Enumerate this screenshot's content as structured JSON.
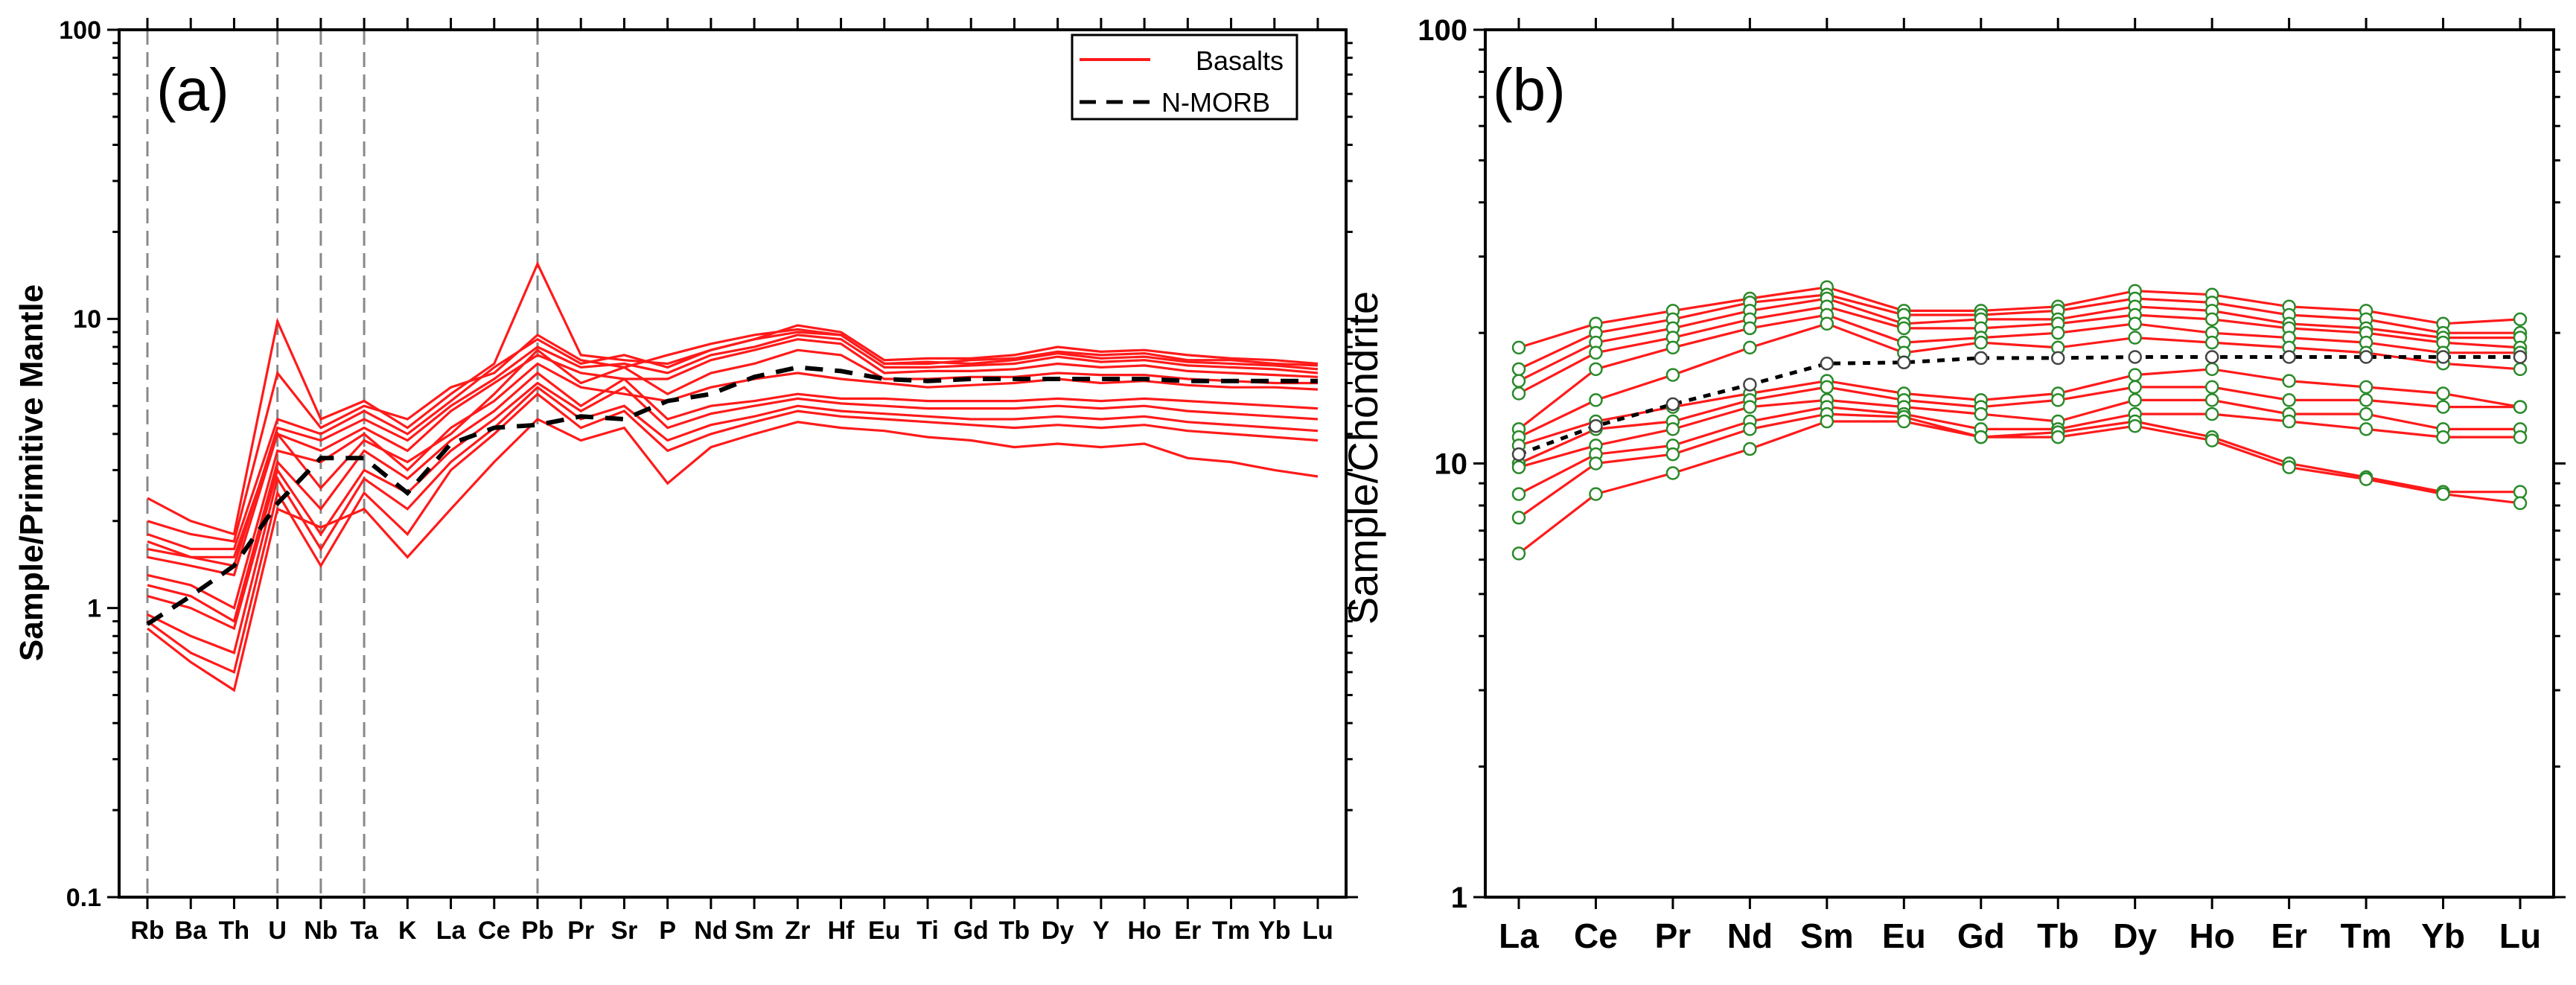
{
  "colors": {
    "series": "#ff1a1a",
    "reference": "#000000",
    "marker": "#2a8a2a",
    "reference_marker": "#444444"
  },
  "chart_data": [
    {
      "type": "line",
      "panel_label": "(a)",
      "ylabel": "Sample/Primitive Mantle",
      "xlabel": "",
      "y_scale": "log",
      "ylim": [
        0.1,
        100
      ],
      "y_tick_labels": [
        "0.1",
        "1",
        "10",
        "100"
      ],
      "y_tick_values": [
        0.1,
        1,
        10,
        100
      ],
      "categories": [
        "Rb",
        "Ba",
        "Th",
        "U",
        "Nb",
        "Ta",
        "K",
        "La",
        "Ce",
        "Pb",
        "Pr",
        "Sr",
        "P",
        "Nd",
        "Sm",
        "Zr",
        "Hf",
        "Eu",
        "Ti",
        "Gd",
        "Tb",
        "Dy",
        "Y",
        "Ho",
        "Er",
        "Tm",
        "Yb",
        "Lu"
      ],
      "vertical_dashed_at": [
        "Rb",
        "U",
        "Nb",
        "Ta",
        "Pb"
      ],
      "legend": {
        "position": "top-right",
        "entries": [
          {
            "label": "Basalts",
            "style": "solid-red"
          },
          {
            "label": "N-MORB",
            "style": "dashed-black"
          }
        ]
      },
      "series": [
        {
          "values": [
            2.4,
            2.0,
            1.8,
            9.8,
            4.5,
            5.2,
            4.2,
            5.5,
            7.0,
            15.5,
            7.5,
            7.2,
            7.0,
            7.8,
            8.5,
            9.5,
            9.0,
            7.2,
            7.3,
            7.3,
            7.5,
            8.0,
            7.7,
            7.8,
            7.5,
            7.3,
            7.2,
            7.0
          ]
        },
        {
          "values": [
            2.0,
            1.8,
            1.7,
            6.5,
            4.2,
            5.0,
            4.5,
            5.8,
            6.5,
            8.8,
            7.2,
            6.8,
            7.5,
            8.2,
            8.8,
            9.2,
            8.8,
            7.0,
            7.0,
            7.2,
            7.3,
            7.7,
            7.5,
            7.6,
            7.2,
            7.2,
            7.0,
            6.9
          ]
        },
        {
          "values": [
            1.8,
            1.6,
            1.6,
            4.5,
            4.0,
            4.8,
            4.0,
            5.2,
            6.8,
            8.5,
            7.0,
            7.5,
            6.8,
            7.8,
            8.5,
            9.0,
            8.8,
            7.0,
            7.1,
            7.0,
            7.2,
            7.6,
            7.3,
            7.4,
            7.1,
            7.0,
            6.9,
            6.7
          ]
        },
        {
          "values": [
            1.6,
            1.5,
            1.4,
            4.2,
            3.8,
            4.5,
            3.8,
            5.0,
            6.2,
            8.0,
            6.8,
            7.0,
            6.5,
            7.5,
            8.0,
            8.8,
            8.5,
            6.8,
            6.8,
            6.9,
            7.0,
            7.4,
            7.1,
            7.2,
            6.9,
            6.8,
            6.7,
            6.5
          ]
        },
        {
          "values": [
            1.5,
            1.4,
            1.3,
            4.0,
            3.5,
            4.2,
            3.5,
            4.8,
            6.0,
            7.5,
            6.5,
            6.2,
            6.2,
            7.2,
            7.8,
            8.5,
            8.2,
            6.5,
            6.6,
            6.6,
            6.7,
            7.0,
            6.8,
            6.9,
            6.6,
            6.5,
            6.4,
            6.3
          ]
        },
        {
          "values": [
            1.7,
            1.5,
            1.5,
            4.0,
            2.6,
            3.8,
            3.2,
            4.0,
            5.5,
            7.8,
            6.0,
            6.8,
            5.5,
            6.5,
            7.0,
            7.8,
            7.5,
            6.2,
            6.2,
            6.3,
            6.3,
            6.5,
            6.4,
            6.4,
            6.2,
            6.1,
            6.0,
            6.0
          ]
        },
        {
          "values": [
            1.3,
            1.2,
            1.0,
            3.5,
            3.2,
            4.0,
            3.0,
            4.2,
            5.2,
            7.0,
            5.8,
            5.5,
            5.2,
            5.8,
            6.2,
            6.5,
            6.2,
            6.0,
            5.8,
            5.9,
            6.0,
            6.2,
            6.0,
            6.1,
            5.9,
            5.8,
            5.8,
            5.7
          ]
        },
        {
          "values": [
            1.2,
            1.1,
            0.9,
            3.2,
            2.2,
            3.5,
            2.8,
            3.8,
            4.8,
            6.5,
            5.0,
            6.2,
            4.5,
            5.0,
            5.2,
            5.5,
            5.3,
            5.3,
            5.2,
            5.2,
            5.2,
            5.3,
            5.2,
            5.3,
            5.2,
            5.1,
            5.0,
            4.9
          ]
        },
        {
          "values": [
            1.1,
            1.0,
            0.85,
            3.0,
            1.8,
            3.0,
            2.5,
            3.5,
            4.5,
            6.0,
            4.8,
            5.8,
            4.2,
            4.7,
            5.0,
            5.3,
            5.1,
            5.0,
            4.9,
            4.9,
            4.9,
            5.0,
            4.9,
            5.0,
            4.8,
            4.7,
            4.6,
            4.5
          ]
        },
        {
          "values": [
            0.95,
            0.8,
            0.7,
            2.8,
            1.6,
            2.8,
            2.2,
            3.2,
            4.2,
            5.8,
            4.5,
            5.0,
            3.8,
            4.3,
            4.6,
            5.0,
            4.8,
            4.7,
            4.6,
            4.5,
            4.5,
            4.6,
            4.5,
            4.6,
            4.4,
            4.3,
            4.2,
            4.1
          ]
        },
        {
          "values": [
            0.9,
            0.7,
            0.6,
            2.5,
            1.4,
            2.5,
            1.8,
            3.0,
            4.0,
            5.5,
            4.2,
            4.8,
            3.5,
            4.0,
            4.4,
            4.8,
            4.6,
            4.5,
            4.4,
            4.3,
            4.2,
            4.3,
            4.2,
            4.3,
            4.1,
            4.0,
            3.9,
            3.8
          ]
        },
        {
          "values": [
            0.85,
            0.65,
            0.52,
            2.2,
            1.9,
            2.2,
            1.5,
            2.2,
            3.2,
            4.5,
            3.8,
            4.2,
            2.7,
            3.6,
            4.0,
            4.4,
            4.2,
            4.1,
            3.9,
            3.8,
            3.6,
            3.7,
            3.6,
            3.7,
            3.3,
            3.2,
            3.0,
            2.85
          ]
        }
      ],
      "reference_series": {
        "name": "N-MORB",
        "values": [
          0.88,
          1.1,
          1.4,
          2.3,
          3.3,
          3.3,
          2.5,
          3.7,
          4.2,
          4.3,
          4.6,
          4.5,
          5.2,
          5.5,
          6.3,
          6.8,
          6.6,
          6.2,
          6.1,
          6.2,
          6.2,
          6.2,
          6.2,
          6.2,
          6.1,
          6.1,
          6.1,
          6.1
        ]
      }
    },
    {
      "type": "line",
      "panel_label": "(b)",
      "ylabel": "Sample/Chondrite",
      "xlabel": "",
      "y_scale": "log",
      "ylim": [
        1,
        100
      ],
      "y_tick_labels": [
        "1",
        "10",
        "100"
      ],
      "y_tick_values": [
        1,
        10,
        100
      ],
      "categories": [
        "La",
        "Ce",
        "Pr",
        "Nd",
        "Sm",
        "Eu",
        "Gd",
        "Tb",
        "Dy",
        "Ho",
        "Er",
        "Tm",
        "Yb",
        "Lu"
      ],
      "series": [
        {
          "values": [
            18.5,
            21.0,
            22.5,
            24.0,
            25.5,
            22.5,
            22.5,
            23.0,
            25.0,
            24.5,
            23.0,
            22.5,
            21.0,
            21.5
          ]
        },
        {
          "values": [
            16.5,
            20.0,
            21.5,
            23.5,
            24.5,
            22.0,
            22.0,
            22.5,
            24.0,
            23.5,
            22.0,
            21.5,
            20.0,
            20.0
          ]
        },
        {
          "values": [
            15.5,
            19.0,
            20.5,
            22.5,
            24.0,
            21.0,
            21.5,
            21.5,
            23.0,
            22.5,
            21.0,
            20.5,
            19.5,
            19.5
          ]
        },
        {
          "values": [
            14.5,
            18.0,
            19.5,
            21.5,
            23.0,
            20.5,
            20.5,
            21.0,
            22.0,
            21.5,
            20.5,
            20.0,
            19.0,
            18.5
          ]
        },
        {
          "values": [
            12.0,
            16.5,
            18.5,
            20.5,
            22.0,
            19.0,
            19.5,
            20.0,
            21.0,
            20.0,
            19.5,
            19.0,
            18.0,
            18.0
          ]
        },
        {
          "values": [
            11.5,
            14.0,
            16.0,
            18.5,
            21.0,
            18.0,
            19.0,
            18.5,
            19.5,
            19.0,
            18.5,
            18.0,
            17.0,
            16.5
          ]
        },
        {
          "values": [
            11.0,
            12.5,
            13.5,
            14.5,
            15.5,
            14.5,
            14.0,
            14.5,
            16.0,
            16.5,
            15.5,
            15.0,
            14.5,
            13.5
          ]
        },
        {
          "values": [
            10.0,
            12.0,
            12.5,
            14.0,
            15.0,
            14.0,
            13.5,
            14.0,
            15.0,
            15.0,
            14.0,
            14.0,
            13.5,
            13.5
          ]
        },
        {
          "values": [
            9.8,
            11.0,
            12.0,
            13.5,
            14.0,
            13.5,
            13.0,
            12.5,
            14.0,
            14.0,
            13.0,
            13.0,
            12.0,
            12.0
          ]
        },
        {
          "values": [
            8.5,
            10.5,
            11.0,
            12.5,
            13.5,
            13.0,
            12.0,
            12.0,
            13.0,
            13.0,
            12.5,
            12.0,
            11.5,
            11.5
          ]
        },
        {
          "values": [
            7.5,
            10.0,
            10.5,
            12.0,
            13.0,
            12.8,
            11.5,
            11.8,
            12.5,
            11.5,
            10.0,
            9.3,
            8.6,
            8.6
          ]
        },
        {
          "values": [
            6.2,
            8.5,
            9.5,
            10.8,
            12.5,
            12.5,
            11.5,
            11.5,
            12.2,
            11.3,
            9.8,
            9.2,
            8.5,
            8.1
          ]
        }
      ],
      "reference_series": {
        "name": "",
        "values": [
          10.5,
          12.2,
          13.7,
          15.2,
          17.0,
          17.1,
          17.5,
          17.5,
          17.6,
          17.6,
          17.6,
          17.6,
          17.6,
          17.6
        ]
      }
    }
  ]
}
